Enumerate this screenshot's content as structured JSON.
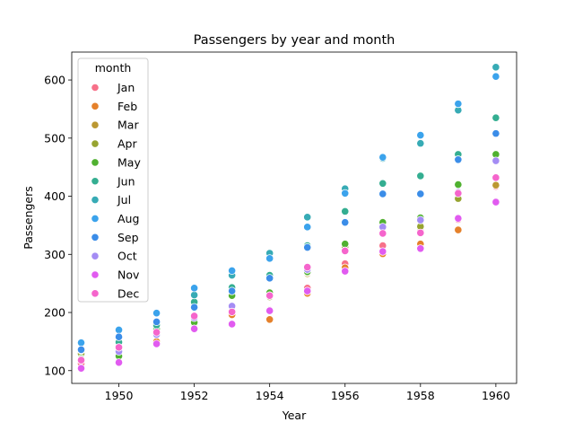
{
  "chart_data": {
    "type": "scatter",
    "title": "Passengers by year and month",
    "xlabel": "Year",
    "ylabel": "Passengers",
    "xlim": [
      1948.75,
      1960.55
    ],
    "ylim": [
      78,
      648
    ],
    "xticks": [
      1950,
      1952,
      1954,
      1956,
      1958,
      1960
    ],
    "yticks": [
      100,
      200,
      300,
      400,
      500,
      600
    ],
    "grid": false,
    "legend": {
      "title": "month",
      "placement": "top-left"
    },
    "x": [
      1949,
      1950,
      1951,
      1952,
      1953,
      1954,
      1955,
      1956,
      1957,
      1958,
      1959,
      1960
    ],
    "series": [
      {
        "name": "Jan",
        "color": "#f77189",
        "values": [
          112,
          115,
          145,
          171,
          196,
          204,
          242,
          284,
          315,
          340,
          360,
          417
        ]
      },
      {
        "name": "Feb",
        "color": "#e5812b",
        "values": [
          118,
          126,
          150,
          180,
          196,
          188,
          233,
          277,
          301,
          318,
          342,
          391
        ]
      },
      {
        "name": "Mar",
        "color": "#bb9832",
        "values": [
          132,
          141,
          178,
          193,
          236,
          235,
          267,
          317,
          356,
          362,
          406,
          419
        ]
      },
      {
        "name": "Apr",
        "color": "#97a431",
        "values": [
          129,
          135,
          163,
          181,
          235,
          227,
          269,
          313,
          348,
          348,
          396,
          461
        ]
      },
      {
        "name": "May",
        "color": "#50b131",
        "values": [
          121,
          125,
          172,
          183,
          229,
          234,
          270,
          318,
          355,
          363,
          420,
          472
        ]
      },
      {
        "name": "Jun",
        "color": "#34ae91",
        "values": [
          135,
          149,
          178,
          218,
          243,
          264,
          315,
          374,
          422,
          435,
          472,
          535
        ]
      },
      {
        "name": "Jul",
        "color": "#37abb5",
        "values": [
          148,
          170,
          199,
          230,
          264,
          302,
          364,
          413,
          465,
          491,
          548,
          622
        ]
      },
      {
        "name": "Aug",
        "color": "#3ba3ec",
        "values": [
          148,
          170,
          199,
          242,
          272,
          293,
          347,
          405,
          467,
          505,
          559,
          606
        ]
      },
      {
        "name": "Sep",
        "color": "#3b8de8",
        "values": [
          136,
          158,
          184,
          209,
          237,
          259,
          312,
          355,
          404,
          404,
          463,
          508
        ]
      },
      {
        "name": "Oct",
        "color": "#a48cf4",
        "values": [
          119,
          133,
          162,
          191,
          211,
          229,
          274,
          306,
          347,
          359,
          407,
          461
        ]
      },
      {
        "name": "Nov",
        "color": "#e15bf0",
        "values": [
          104,
          114,
          146,
          172,
          180,
          203,
          237,
          271,
          305,
          310,
          362,
          390
        ]
      },
      {
        "name": "Dec",
        "color": "#f565cc",
        "values": [
          118,
          140,
          166,
          194,
          201,
          229,
          278,
          306,
          336,
          337,
          405,
          432
        ]
      }
    ]
  }
}
